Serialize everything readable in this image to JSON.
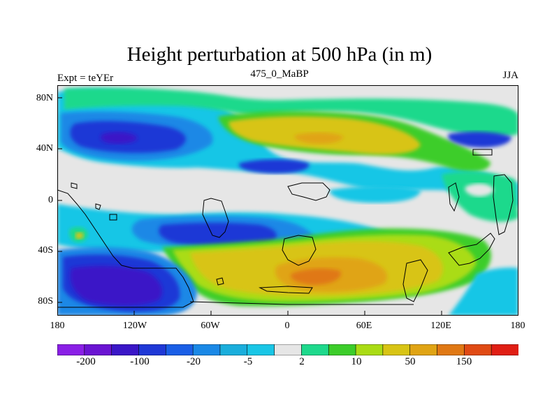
{
  "title": "Height perturbation at 500 hPa (in m)",
  "left_label": "Expt = teYEr",
  "center_label": "475_0_MaBP",
  "right_label": "JJA",
  "lat_ticks": [
    "80N",
    "40N",
    "0",
    "40S",
    "80S"
  ],
  "lon_ticks": [
    "180",
    "120W",
    "60W",
    "0",
    "60E",
    "120E",
    "180"
  ],
  "colorbar": {
    "colors": [
      "#8a1fe6",
      "#6a14d2",
      "#3a16c7",
      "#1f38d6",
      "#1a5ee6",
      "#1a88e6",
      "#1aaedc",
      "#19c6e6",
      "#e6e6e6",
      "#1ed98c",
      "#3ccd2a",
      "#aadc14",
      "#d8c414",
      "#e0a414",
      "#e07814",
      "#e04a14",
      "#e01e14"
    ],
    "labels": [
      "-200",
      "-100",
      "-20",
      "-5",
      "2",
      "10",
      "50",
      "150"
    ]
  },
  "map": {
    "type": "filled-contour",
    "projection": "cylindrical-equidistant",
    "lon_range": [
      -180,
      180
    ],
    "lat_range": [
      -90,
      90
    ],
    "coastlines": true
  }
}
